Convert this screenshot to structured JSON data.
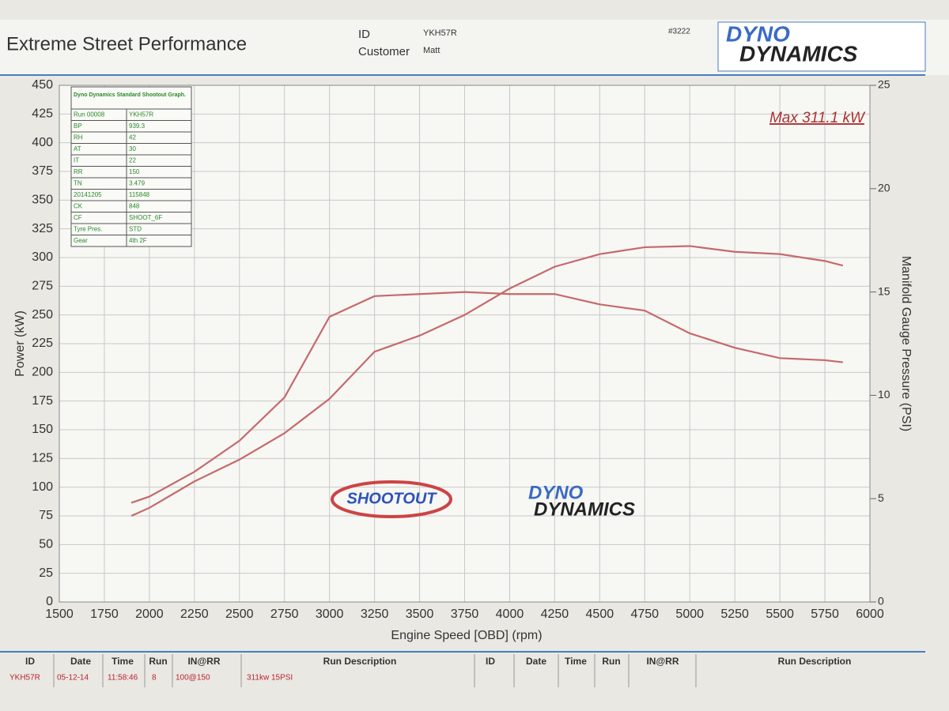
{
  "header": {
    "title": "Extreme Street Performance",
    "id_label": "ID",
    "id_value": "YKH57R",
    "customer_label": "Customer",
    "customer_value": "Matt",
    "sheet_no": "#3222",
    "logo_top": "DYNO",
    "logo_bottom": "DYNAMICS"
  },
  "info_table": {
    "title": "Dyno Dynamics Standard Shootout Graph.",
    "rows": [
      [
        "Run 00008",
        "YKH57R"
      ],
      [
        "BP",
        "939.3"
      ],
      [
        "RH",
        "42"
      ],
      [
        "AT",
        "30"
      ],
      [
        "IT",
        "22"
      ],
      [
        "RR",
        "150"
      ],
      [
        "TN",
        "3.479"
      ],
      [
        "20141205",
        "115848"
      ],
      [
        "CK",
        "848"
      ],
      [
        "CF",
        "SHOOT_6F"
      ],
      [
        "Tyre Pres.",
        "STD"
      ],
      [
        "Gear",
        "4th 2F"
      ]
    ]
  },
  "watermarks": {
    "shootout": "SHOOTOUT",
    "logo_top": "DYNO",
    "logo_bottom": "DYNAMICS"
  },
  "chart_data": {
    "type": "line",
    "x_label": "Engine Speed [OBD] (rpm)",
    "y_label": "Power (kW)",
    "y2_label": "Manifold Gauge Pressure (PSI)",
    "annotation": "Max 311.1 kW",
    "x": [
      1900,
      2000,
      2250,
      2500,
      2750,
      3000,
      3250,
      3500,
      3750,
      4000,
      4250,
      4500,
      4750,
      5000,
      5250,
      5500,
      5750,
      5850
    ],
    "series": [
      {
        "color": "#c46a6a",
        "values": [
          75,
          82,
          105,
          124,
          147,
          177,
          218,
          232,
          250,
          273,
          292,
          303,
          309,
          310,
          305,
          303,
          297,
          293
        ]
      },
      {
        "color": "#c46a6a",
        "axis": "y2",
        "values": [
          4.8,
          5.1,
          6.3,
          7.8,
          9.9,
          13.8,
          14.8,
          14.9,
          15.0,
          14.9,
          14.9,
          14.4,
          14.1,
          13.0,
          12.3,
          11.8,
          11.7,
          11.6
        ]
      }
    ],
    "xlim": [
      1500,
      6000
    ],
    "xticks": [
      1500,
      1750,
      2000,
      2250,
      2500,
      2750,
      3000,
      3250,
      3500,
      3750,
      4000,
      4250,
      4500,
      4750,
      5000,
      5250,
      5500,
      5750,
      6000
    ],
    "ylim": [
      0,
      450
    ],
    "yticks": [
      0,
      25,
      50,
      75,
      100,
      125,
      150,
      175,
      200,
      225,
      250,
      275,
      300,
      325,
      350,
      375,
      400,
      425,
      450
    ],
    "y2lim": [
      0,
      25
    ],
    "y2ticks": [
      0,
      5,
      10,
      15,
      20,
      25
    ],
    "grid": true
  },
  "runs_table": {
    "headers": [
      "ID",
      "Date",
      "Time",
      "Run",
      "IN@RR",
      "Run Description",
      "ID",
      "Date",
      "Time",
      "Run",
      "IN@RR",
      "Run Description"
    ],
    "rows": [
      [
        "YKH57R",
        "05-12-14",
        "11:58:46",
        "8",
        "100@150",
        "311kw 15PSI"
      ]
    ]
  }
}
